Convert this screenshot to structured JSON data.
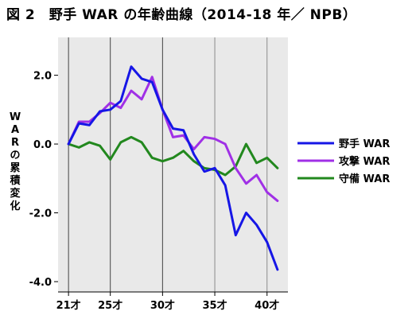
{
  "chart_data": {
    "type": "line",
    "title": "図 2　野手 WAR の年齢曲線（2014-18 年／ NPB）",
    "ylabel": "WARの累積変化",
    "xlabel": "",
    "xlim": [
      20,
      42
    ],
    "ylim": [
      -4.3,
      3.1
    ],
    "yticks": [
      2.0,
      0.0,
      -2.0,
      -4.0
    ],
    "ytick_labels": [
      "2.0",
      "0.0",
      "-2.0",
      "-4.0"
    ],
    "xticks": [
      21,
      25,
      30,
      35,
      40
    ],
    "xtick_labels": [
      "21才",
      "25才",
      "30才",
      "35才",
      "40才"
    ],
    "grid": "vertical lines at 21, 25, 30, 35, 40",
    "legend": "right",
    "x": [
      21,
      22,
      23,
      24,
      25,
      26,
      27,
      28,
      29,
      30,
      31,
      32,
      33,
      34,
      35,
      36,
      37,
      38,
      39,
      40,
      41
    ],
    "series": [
      {
        "name": "野手 WAR",
        "color": "#1616e6",
        "values": [
          0.0,
          0.6,
          0.55,
          0.95,
          1.0,
          1.25,
          2.25,
          1.9,
          1.8,
          1.0,
          0.45,
          0.4,
          -0.3,
          -0.8,
          -0.7,
          -1.2,
          -2.65,
          -2.0,
          -2.35,
          -2.85,
          -3.65
        ]
      },
      {
        "name": "攻撃 WAR",
        "color": "#a030e6",
        "values": [
          0.0,
          0.65,
          0.65,
          0.9,
          1.2,
          1.05,
          1.55,
          1.3,
          1.95,
          1.0,
          0.2,
          0.25,
          -0.15,
          0.2,
          0.15,
          0.0,
          -0.7,
          -1.15,
          -0.9,
          -1.4,
          -1.65
        ]
      },
      {
        "name": "守備 WAR",
        "color": "#22881e",
        "values": [
          0.0,
          -0.1,
          0.05,
          -0.05,
          -0.45,
          0.05,
          0.2,
          0.05,
          -0.4,
          -0.5,
          -0.4,
          -0.2,
          -0.5,
          -0.7,
          -0.75,
          -0.9,
          -0.65,
          0.0,
          -0.55,
          -0.4,
          -0.7
        ]
      }
    ]
  }
}
